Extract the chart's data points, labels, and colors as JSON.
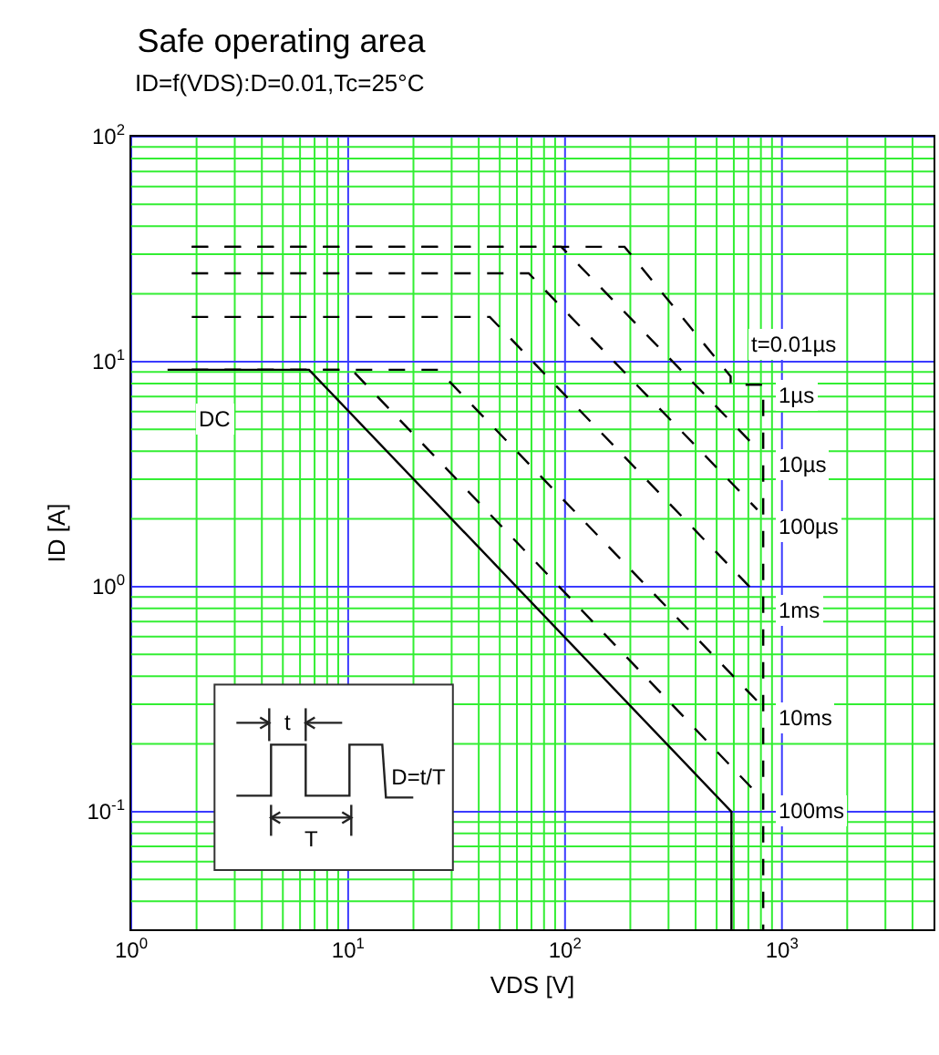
{
  "chart_data": {
    "type": "line",
    "title": "Safe operating area",
    "subtitle": "ID=f(VDS):D=0.01,Tc=25°C",
    "xlabel": "VDS [V]",
    "ylabel": "ID [A]",
    "log": "xy",
    "grid": true,
    "marker": "none",
    "xlim": [
      1,
      5000
    ],
    "ylim": [
      0.03,
      100
    ],
    "xticks": [
      {
        "value": 1,
        "label": "10$^{0}$"
      },
      {
        "value": 2,
        "label": null
      },
      {
        "value": 3,
        "label": null
      },
      {
        "value": 4,
        "label": null
      },
      {
        "value": 5,
        "label": null
      },
      {
        "value": 6,
        "label": null
      },
      {
        "value": 7,
        "label": null
      },
      {
        "value": 8,
        "label": null
      },
      {
        "value": 9,
        "label": null
      },
      {
        "value": 10,
        "label": "10$^{1}$"
      },
      {
        "value": 20,
        "label": null
      },
      {
        "value": 30,
        "label": null
      },
      {
        "value": 40,
        "label": null
      },
      {
        "value": 50,
        "label": null
      },
      {
        "value": 60,
        "label": null
      },
      {
        "value": 70,
        "label": null
      },
      {
        "value": 80,
        "label": null
      },
      {
        "value": 90,
        "label": null
      },
      {
        "value": 100,
        "label": "10$^{2}$"
      },
      {
        "value": 200,
        "label": null
      },
      {
        "value": 300,
        "label": null
      },
      {
        "value": 400,
        "label": null
      },
      {
        "value": 500,
        "label": null
      },
      {
        "value": 600,
        "label": null
      },
      {
        "value": 700,
        "label": null
      },
      {
        "value": 800,
        "label": null
      },
      {
        "value": 900,
        "label": null
      },
      {
        "value": 1000,
        "label": "10$^{3}$"
      },
      {
        "value": 2000,
        "label": null
      },
      {
        "value": 3000,
        "label": null
      },
      {
        "value": 4000,
        "label": null
      }
    ],
    "yticks": [
      {
        "value": 0.04,
        "label": null
      },
      {
        "value": 0.05,
        "label": null
      },
      {
        "value": 0.06,
        "label": null
      },
      {
        "value": 0.07,
        "label": null
      },
      {
        "value": 0.08,
        "label": null
      },
      {
        "value": 0.09,
        "label": null
      },
      {
        "value": 0.1,
        "label": "10$^{-1}$"
      },
      {
        "value": 0.2,
        "label": null
      },
      {
        "value": 0.3,
        "label": null
      },
      {
        "value": 0.4,
        "label": null
      },
      {
        "value": 0.5,
        "label": null
      },
      {
        "value": 0.6,
        "label": null
      },
      {
        "value": 0.7,
        "label": null
      },
      {
        "value": 0.8,
        "label": null
      },
      {
        "value": 0.9,
        "label": null
      },
      {
        "value": 1,
        "label": "10$^{0}$"
      },
      {
        "value": 2,
        "label": null
      },
      {
        "value": 3,
        "label": null
      },
      {
        "value": 4,
        "label": null
      },
      {
        "value": 5,
        "label": null
      },
      {
        "value": 6,
        "label": null
      },
      {
        "value": 7,
        "label": null
      },
      {
        "value": 8,
        "label": null
      },
      {
        "value": 9,
        "label": null
      },
      {
        "value": 10,
        "label": "10$^{1}$"
      },
      {
        "value": 20,
        "label": null
      },
      {
        "value": 30,
        "label": null
      },
      {
        "value": 40,
        "label": null
      },
      {
        "value": 50,
        "label": null
      },
      {
        "value": 60,
        "label": null
      },
      {
        "value": 70,
        "label": null
      },
      {
        "value": 80,
        "label": null
      },
      {
        "value": 90,
        "label": null
      },
      {
        "value": 100,
        "label": "10$^{2}$"
      }
    ],
    "series": [
      {
        "color": "#000000",
        "line_style": "solid",
        "x": [
          1.47,
          6.6,
          585,
          585
        ],
        "values": [
          9.2,
          9.2,
          0.1,
          0.03
        ]
      },
      {
        "color": "#000000",
        "line_style": "dashed",
        "x": [
          1.9,
          188,
          580,
          580,
          820,
          820
        ],
        "values": [
          32.4,
          32.4,
          8.6,
          7.9,
          7.9,
          0.03
        ]
      },
      {
        "color": "#000000",
        "line_style": "dashed",
        "x": [
          1.9,
          96,
          770
        ],
        "values": [
          32.4,
          32.4,
          4.1
        ]
      },
      {
        "color": "#000000",
        "line_style": "dashed",
        "x": [
          1.9,
          68,
          770
        ],
        "values": [
          24.7,
          24.7,
          2.2
        ]
      },
      {
        "color": "#000000",
        "line_style": "dashed",
        "x": [
          1.9,
          45,
          770
        ],
        "values": [
          15.8,
          15.8,
          0.92
        ]
      },
      {
        "color": "#000000",
        "line_style": "dashed",
        "x": [
          1.9,
          26,
          770
        ],
        "values": [
          9.2,
          9.2,
          0.31
        ]
      },
      {
        "color": "#000000",
        "line_style": "dashed",
        "x": [
          1.9,
          10.4,
          770
        ],
        "values": [
          9.2,
          9.2,
          0.12
        ]
      }
    ],
    "annotations": [
      {
        "text": "DC",
        "x": 1.47,
        "y": 9.2
      },
      {
        "text": "t=0.01µs",
        "x": 580,
        "y": 8.6
      },
      {
        "text": "1µs",
        "x": 820,
        "y": 7.9
      },
      {
        "text": "10µs",
        "x": 770,
        "y": 4.1
      },
      {
        "text": "100µs",
        "x": 770,
        "y": 2.2
      },
      {
        "text": "1ms",
        "x": 770,
        "y": 0.92
      },
      {
        "text": "10ms",
        "x": 770,
        "y": 0.31
      },
      {
        "text": "100ms",
        "x": 770,
        "y": 0.12
      },
      "t",
      "T",
      "D=t/T"
    ]
  }
}
